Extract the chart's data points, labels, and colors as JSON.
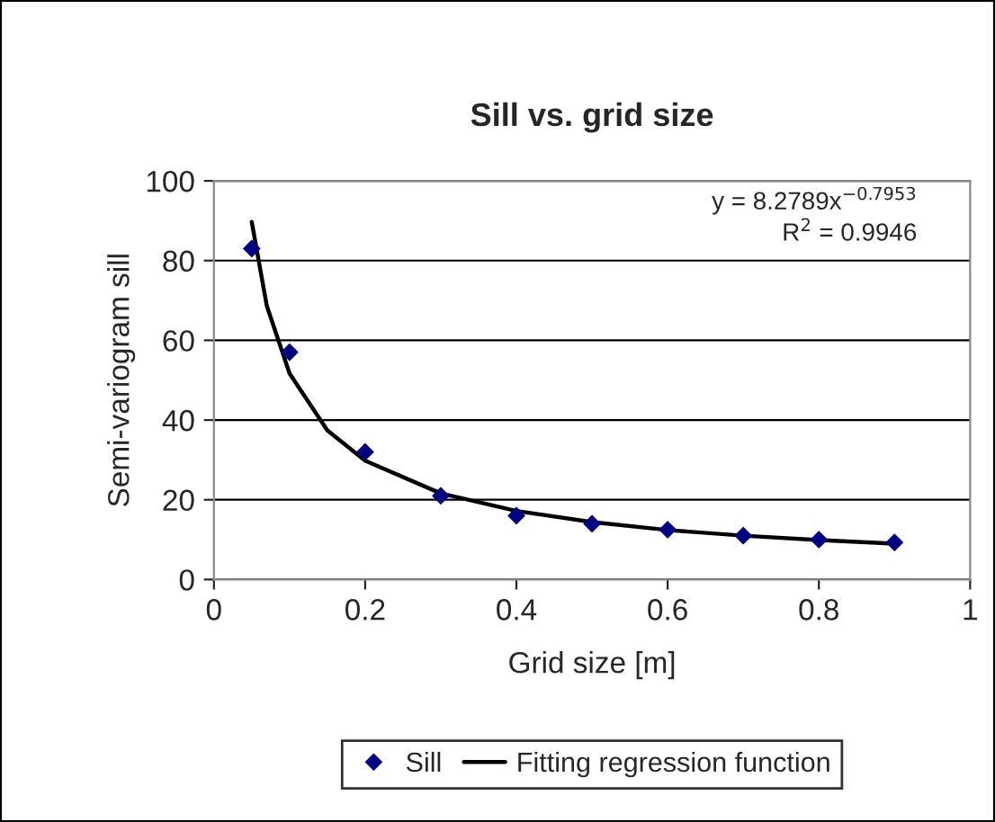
{
  "chart_data": {
    "type": "scatter",
    "title": "Sill vs. grid size",
    "xlabel": "Grid size [m]",
    "ylabel": "Semi-variogram sill",
    "series": [
      {
        "name": "Sill",
        "color": "#000080",
        "marker": "diamond",
        "x": [
          0.05,
          0.1,
          0.2,
          0.3,
          0.4,
          0.5,
          0.6,
          0.7,
          0.8,
          0.9
        ],
        "values": [
          83,
          57,
          32,
          21,
          16,
          14,
          12.5,
          11,
          10,
          9.3
        ]
      },
      {
        "name": "Fitting regression function",
        "type": "line",
        "color": "#000000",
        "line_style": "solid",
        "x": [
          0.05,
          0.07,
          0.1,
          0.15,
          0.2,
          0.3,
          0.4,
          0.5,
          0.6,
          0.7,
          0.8,
          0.9
        ],
        "values": [
          89.7,
          68.6,
          51.7,
          37.4,
          29.8,
          21.6,
          17.2,
          14.4,
          12.4,
          11.0,
          9.9,
          9.0
        ]
      }
    ],
    "annotations": [
      "y = 8.2789x$^{−0.7953}$",
      "R$^{2}$ = 0.9946"
    ],
    "xlim": [
      0,
      1
    ],
    "xticks": [
      0,
      0.2,
      0.4,
      0.6,
      0.8,
      1
    ],
    "ylim": [
      0,
      100
    ],
    "yticks": [
      0,
      20,
      40,
      60,
      80,
      100
    ],
    "grid": "y",
    "legend": "bottom"
  }
}
